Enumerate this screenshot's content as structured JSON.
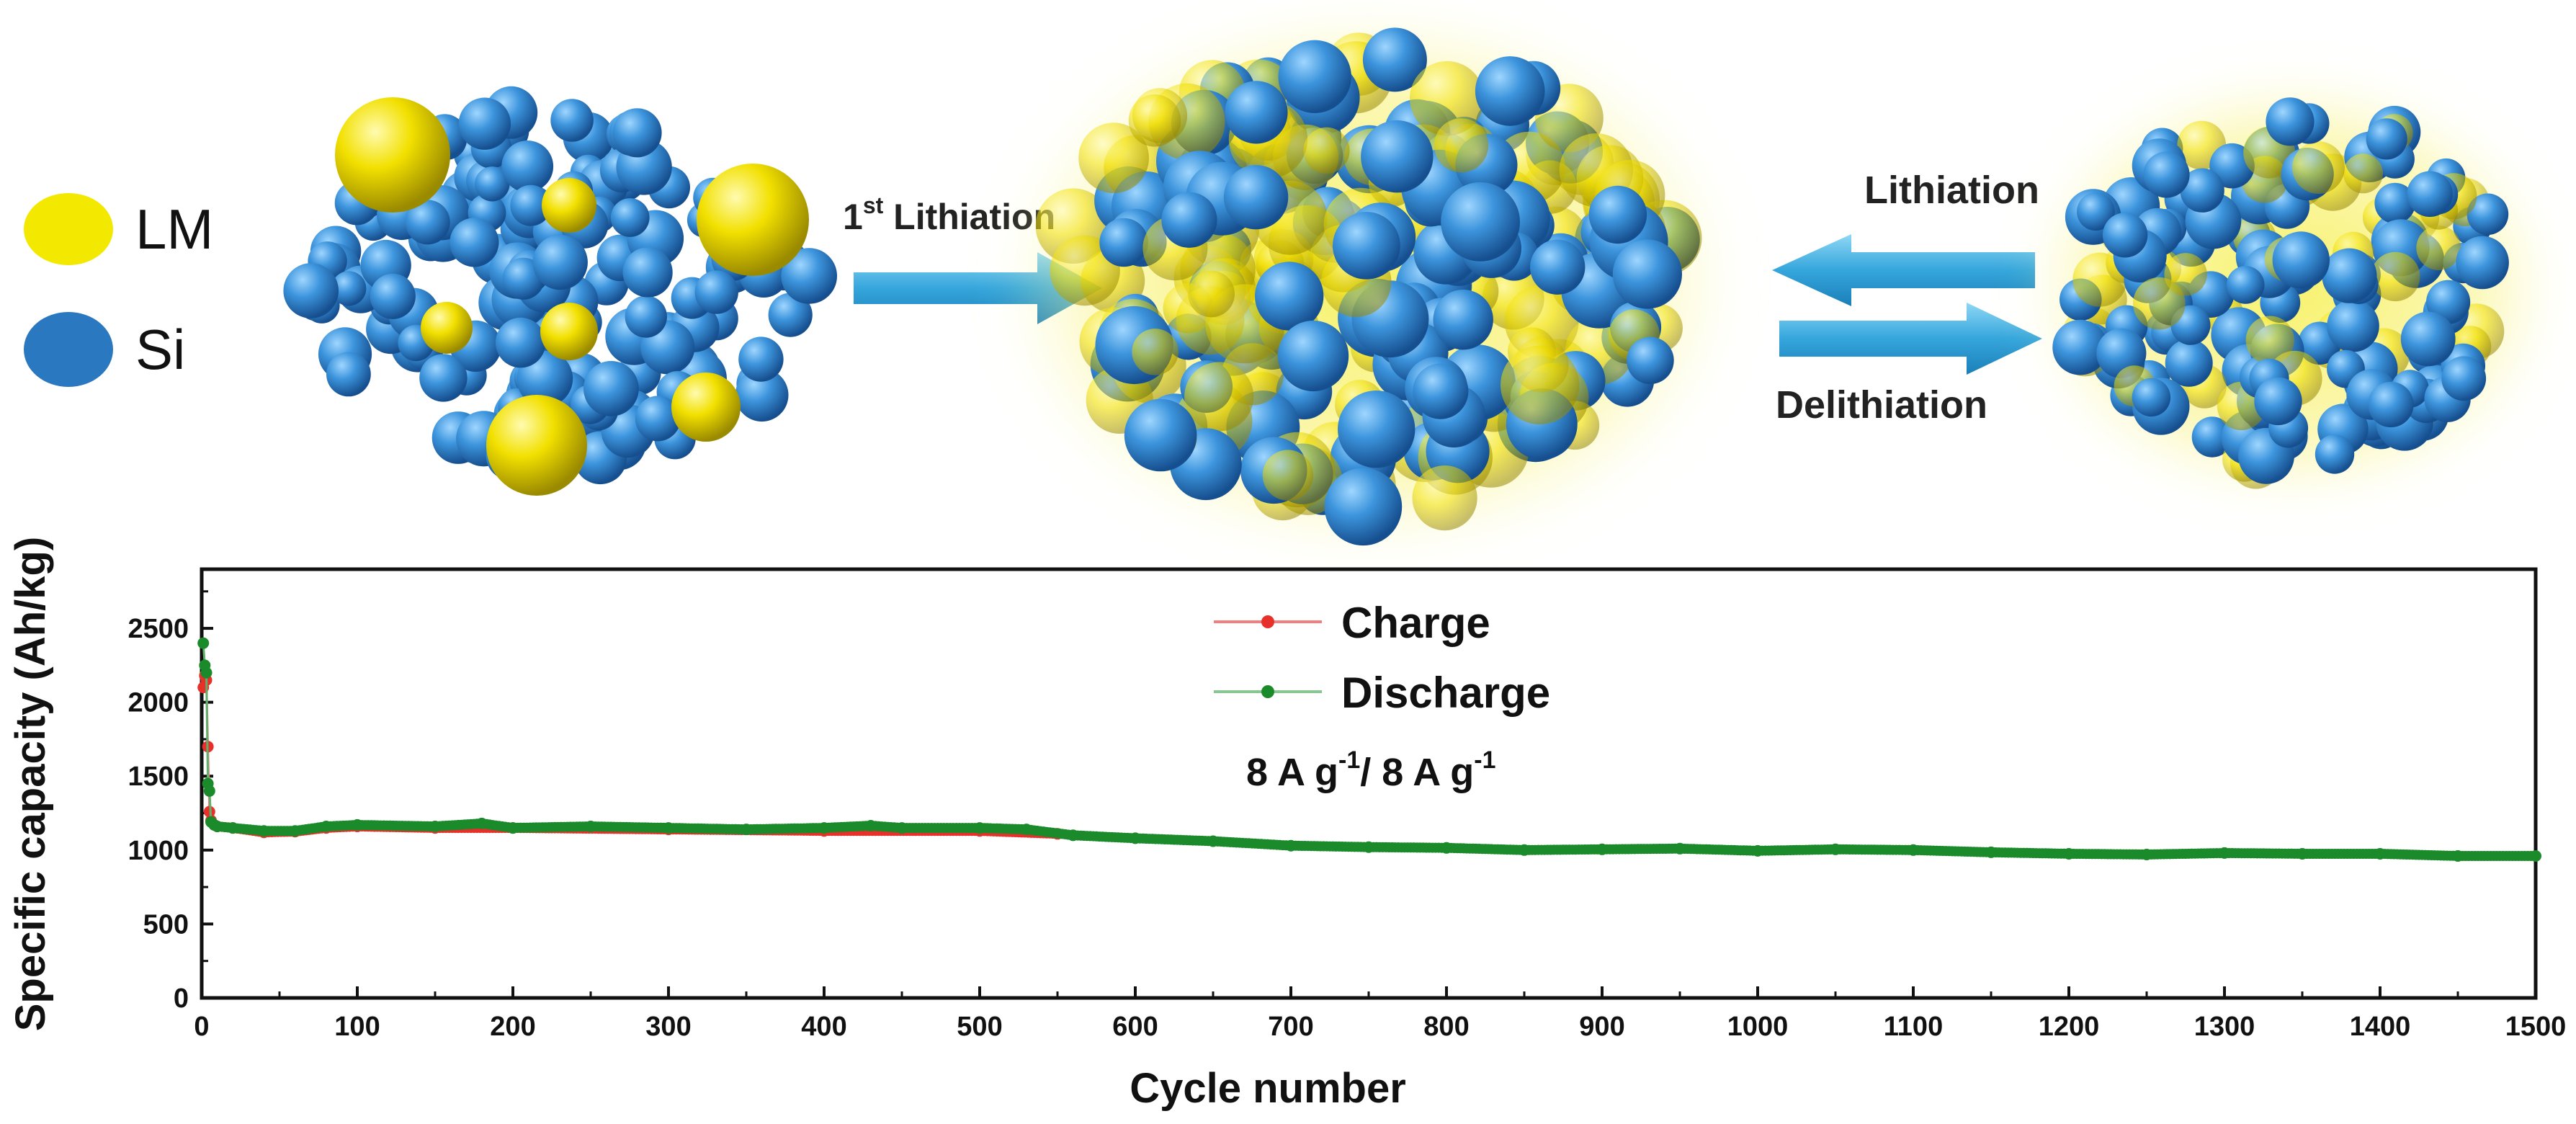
{
  "schematic": {
    "legend_lm": "LM",
    "legend_si": "Si",
    "first_lith_base": "1",
    "first_lith_sup": "st",
    "first_lith_rest": " Lithiation",
    "lithiation": "Lithiation",
    "delithiation": "Delithiation",
    "colors": {
      "lm": "#f2e600",
      "si": "#2e86d4",
      "arrow": "#3aaee0"
    }
  },
  "chart_data": {
    "type": "line",
    "title": "",
    "xlabel": "Cycle number",
    "ylabel": "Specific capacity (Ah/kg)",
    "xlim": [
      0,
      1500
    ],
    "ylim": [
      0,
      2900
    ],
    "xticks": [
      "0",
      "100",
      "200",
      "300",
      "400",
      "500",
      "600",
      "700",
      "800",
      "900",
      "1000",
      "1100",
      "1200",
      "1300",
      "1400",
      "1500"
    ],
    "yticks": [
      "0",
      "500",
      "1000",
      "1500",
      "2000",
      "2500"
    ],
    "condition": {
      "base1": "8 A g",
      "sup1": "-1",
      "mid": "/ 8 A g",
      "sup2": "-1"
    },
    "legend_position": "top-center",
    "grid": false,
    "series": [
      {
        "name": "Charge",
        "color": "#e8302a",
        "points": [
          [
            1,
            2100
          ],
          [
            2,
            2180
          ],
          [
            3,
            2150
          ],
          [
            4,
            1700
          ],
          [
            5,
            1260
          ],
          [
            6,
            1200
          ],
          [
            8,
            1170
          ],
          [
            10,
            1160
          ],
          [
            20,
            1150
          ],
          [
            40,
            1120
          ],
          [
            60,
            1125
          ],
          [
            80,
            1150
          ],
          [
            100,
            1160
          ],
          [
            150,
            1150
          ],
          [
            200,
            1150
          ],
          [
            300,
            1140
          ],
          [
            400,
            1130
          ],
          [
            500,
            1130
          ],
          [
            550,
            1110
          ]
        ]
      },
      {
        "name": "Discharge",
        "color": "#1a8a2a",
        "points": [
          [
            1,
            2400
          ],
          [
            2,
            2250
          ],
          [
            3,
            2200
          ],
          [
            4,
            1450
          ],
          [
            5,
            1400
          ],
          [
            6,
            1190
          ],
          [
            8,
            1170
          ],
          [
            10,
            1160
          ],
          [
            20,
            1150
          ],
          [
            40,
            1130
          ],
          [
            60,
            1130
          ],
          [
            80,
            1160
          ],
          [
            100,
            1170
          ],
          [
            150,
            1160
          ],
          [
            180,
            1180
          ],
          [
            200,
            1150
          ],
          [
            250,
            1160
          ],
          [
            300,
            1150
          ],
          [
            350,
            1140
          ],
          [
            400,
            1150
          ],
          [
            430,
            1165
          ],
          [
            450,
            1150
          ],
          [
            500,
            1150
          ],
          [
            530,
            1140
          ],
          [
            560,
            1100
          ],
          [
            600,
            1080
          ],
          [
            650,
            1060
          ],
          [
            700,
            1030
          ],
          [
            750,
            1020
          ],
          [
            800,
            1015
          ],
          [
            850,
            1000
          ],
          [
            900,
            1005
          ],
          [
            950,
            1010
          ],
          [
            1000,
            995
          ],
          [
            1050,
            1005
          ],
          [
            1100,
            1000
          ],
          [
            1150,
            985
          ],
          [
            1200,
            975
          ],
          [
            1250,
            970
          ],
          [
            1300,
            980
          ],
          [
            1350,
            975
          ],
          [
            1400,
            975
          ],
          [
            1450,
            960
          ],
          [
            1500,
            960
          ]
        ]
      }
    ]
  }
}
